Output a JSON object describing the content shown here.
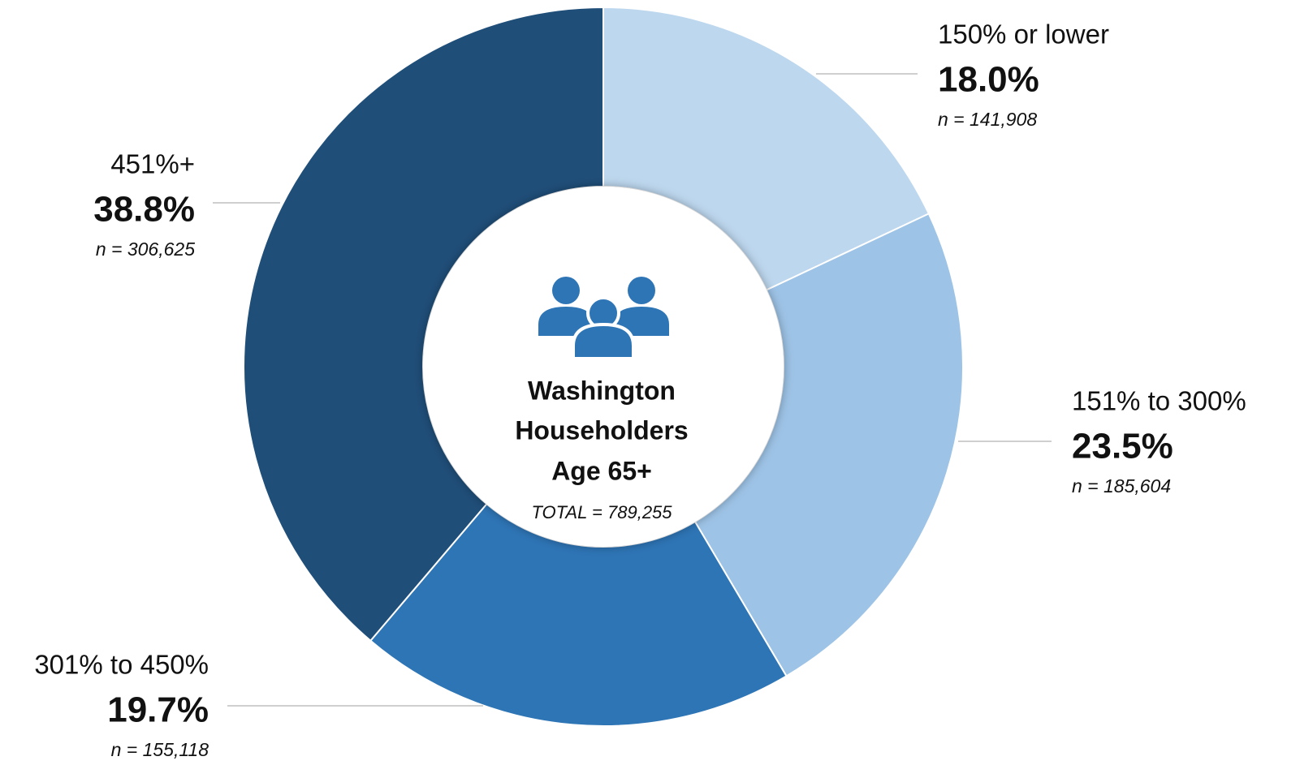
{
  "chart_data": {
    "type": "donut",
    "categories": [
      "150% or lower",
      "151% to 300%",
      "301% to 450%",
      "451%+"
    ],
    "values": [
      18.0,
      23.5,
      19.7,
      38.8
    ],
    "value_labels": [
      "18.0%",
      "23.5%",
      "19.7%",
      "38.8%"
    ],
    "count_labels": [
      "n = 141,908",
      "n = 185,604",
      "n = 155,118",
      "n = 306,625"
    ],
    "colors": [
      "#bdd7ee",
      "#9dc3e6",
      "#2e75b6",
      "#1f4e79"
    ],
    "center_title": [
      "Washington",
      "Householders",
      "Age 65+"
    ],
    "center_total": "TOTAL = 789,255"
  }
}
